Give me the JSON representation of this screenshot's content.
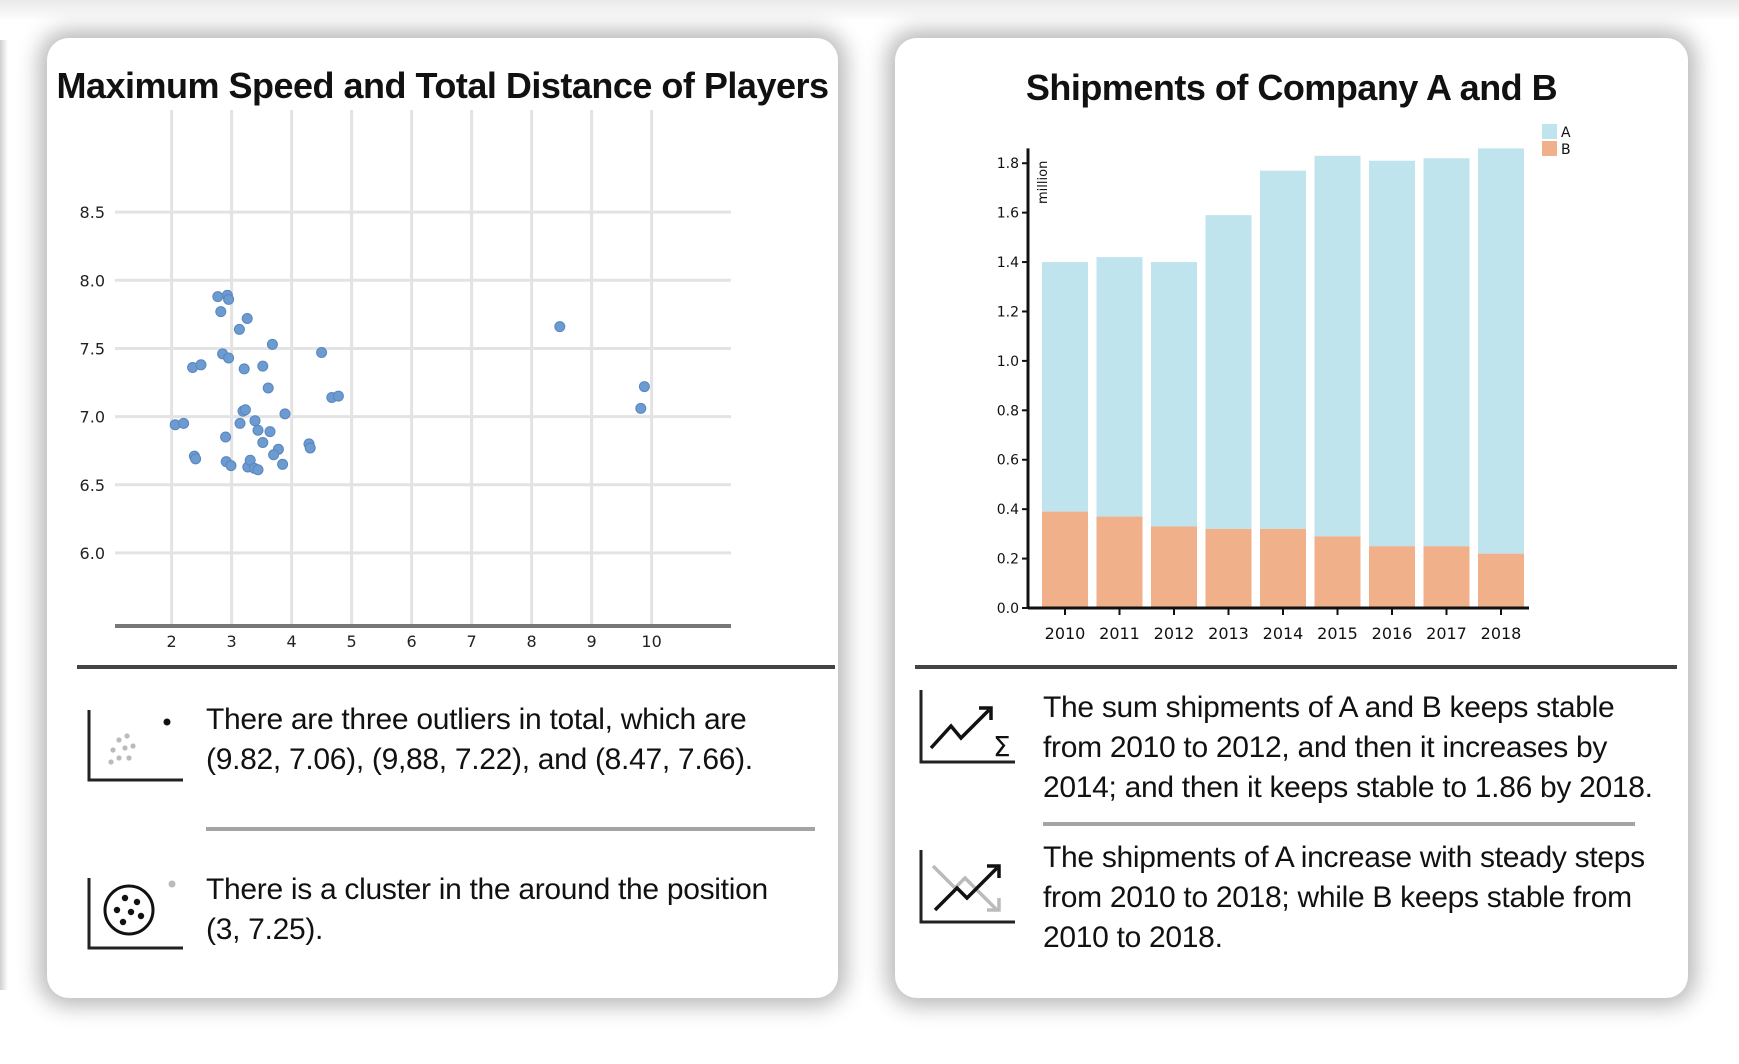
{
  "left_card": {
    "title": "Maximum Speed and Total Distance of Players",
    "insights": [
      {
        "icon": "outlier-scatter-icon",
        "text": "There are three outliers in total, which are (9.82, 7.06), (9,88, 7.22), and (8.47, 7.66)."
      },
      {
        "icon": "cluster-icon",
        "text": "There is a cluster in the around the position (3, 7.25)."
      }
    ]
  },
  "right_card": {
    "title": "Shipments of Company A and B",
    "insights": [
      {
        "icon": "trend-sum-icon",
        "text": "The sum shipments of A and B keeps stable from 2010 to 2012, and then it increases by 2014; and then it keeps stable to 1.86 by 2018."
      },
      {
        "icon": "trend-compare-icon",
        "text": "The shipments of A increase with steady steps from 2010 to 2018; while B keeps stable from 2010 to 2018."
      }
    ]
  },
  "chart_data": [
    {
      "type": "scatter",
      "title": "Maximum Speed and Total Distance of Players",
      "xlabel": "",
      "ylabel": "",
      "xlim": [
        1,
        10.9
      ],
      "ylim": [
        5.55,
        8.75
      ],
      "x_ticks": [
        2,
        3,
        4,
        5,
        6,
        7,
        8,
        9,
        10
      ],
      "y_ticks": [
        6.0,
        6.5,
        7.0,
        7.5,
        8.0,
        8.5
      ],
      "x_tick_labels": [
        "2",
        "3",
        "4",
        "5",
        "6",
        "7",
        "8",
        "9",
        "10"
      ],
      "y_tick_labels": [
        "6.0",
        "6.5",
        "7.0",
        "7.5",
        "8.0",
        "8.5"
      ],
      "grid": true,
      "point_color": "#6b9bd1",
      "points": [
        [
          2.77,
          7.88
        ],
        [
          2.93,
          7.89
        ],
        [
          2.95,
          7.86
        ],
        [
          2.82,
          7.77
        ],
        [
          3.13,
          7.64
        ],
        [
          3.26,
          7.72
        ],
        [
          2.85,
          7.46
        ],
        [
          2.95,
          7.43
        ],
        [
          3.21,
          7.35
        ],
        [
          3.52,
          7.37
        ],
        [
          3.68,
          7.53
        ],
        [
          3.61,
          7.21
        ],
        [
          2.35,
          7.36
        ],
        [
          2.49,
          7.38
        ],
        [
          4.5,
          7.47
        ],
        [
          4.67,
          7.14
        ],
        [
          4.78,
          7.15
        ],
        [
          3.89,
          7.02
        ],
        [
          3.19,
          7.04
        ],
        [
          3.23,
          7.05
        ],
        [
          3.14,
          6.95
        ],
        [
          3.39,
          6.97
        ],
        [
          3.44,
          6.9
        ],
        [
          3.64,
          6.89
        ],
        [
          3.52,
          6.81
        ],
        [
          2.06,
          6.94
        ],
        [
          2.2,
          6.95
        ],
        [
          2.9,
          6.85
        ],
        [
          2.38,
          6.71
        ],
        [
          2.4,
          6.69
        ],
        [
          4.29,
          6.8
        ],
        [
          4.31,
          6.77
        ],
        [
          3.78,
          6.76
        ],
        [
          3.7,
          6.72
        ],
        [
          3.85,
          6.65
        ],
        [
          2.91,
          6.67
        ],
        [
          2.99,
          6.64
        ],
        [
          3.27,
          6.63
        ],
        [
          3.31,
          6.68
        ],
        [
          3.38,
          6.62
        ],
        [
          3.44,
          6.61
        ],
        [
          8.47,
          7.66
        ],
        [
          9.82,
          7.06
        ],
        [
          9.88,
          7.22
        ]
      ]
    },
    {
      "type": "bar",
      "stacked": true,
      "title": "Shipments of Company A and B",
      "ylabel": "million",
      "categories": [
        "2010",
        "2011",
        "2012",
        "2013",
        "2014",
        "2015",
        "2016",
        "2017",
        "2018"
      ],
      "ylim": [
        0,
        1.86
      ],
      "y_ticks": [
        0.0,
        0.2,
        0.4,
        0.6,
        0.8,
        1.0,
        1.2,
        1.4,
        1.6,
        1.8
      ],
      "y_tick_labels": [
        "0.0",
        "0.2",
        "0.4",
        "0.6",
        "0.8",
        "1.0",
        "1.2",
        "1.4",
        "1.6",
        "1.8"
      ],
      "legend_position": "top-right",
      "series": [
        {
          "name": "B",
          "color": "#efb08a",
          "values": [
            0.39,
            0.37,
            0.33,
            0.32,
            0.32,
            0.29,
            0.25,
            0.25,
            0.22
          ]
        },
        {
          "name": "A",
          "color": "#bfe4ee",
          "values": [
            1.01,
            1.05,
            1.07,
            1.27,
            1.45,
            1.54,
            1.56,
            1.57,
            1.64
          ]
        }
      ]
    }
  ]
}
